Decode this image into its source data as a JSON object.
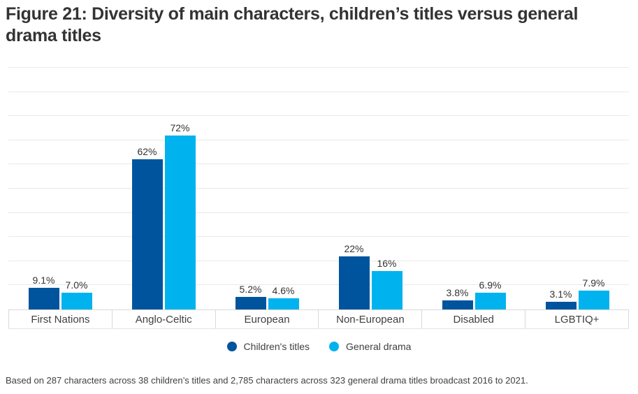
{
  "title": "Figure 21: Diversity of main characters, children’s titles versus general drama titles",
  "footnote": "Based on 287 characters across 38 children’s titles and 2,785 characters across 323 general drama titles broadcast 2016 to 2021.",
  "colors": {
    "children_titles": "#00549e",
    "general_drama": "#00b2ee",
    "gridline": "#e9e9e9",
    "axis_border": "#d9d9d9",
    "title_text": "#333333",
    "body_text": "#404040"
  },
  "chart_data": {
    "type": "bar",
    "title": "Figure 21: Diversity of main characters, children’s titles versus general drama titles",
    "categories": [
      "First Nations",
      "Anglo-Celtic",
      "European",
      "Non-European",
      "Disabled",
      "LGBTIQ+"
    ],
    "series": [
      {
        "name": "Children's titles",
        "color": "#00549e",
        "values": [
          9.1,
          62,
          5.2,
          22,
          3.8,
          3.1
        ],
        "labels": [
          "9.1%",
          "62%",
          "5.2%",
          "22%",
          "3.8%",
          "3.1%"
        ]
      },
      {
        "name": "General drama",
        "color": "#00b2ee",
        "values": [
          7.0,
          72,
          4.6,
          16,
          6.9,
          7.9
        ],
        "labels": [
          "7.0%",
          "72%",
          "4.6%",
          "16%",
          "6.9%",
          "7.9%"
        ]
      }
    ],
    "xlabel": "",
    "ylabel": "",
    "ylim": [
      0,
      100
    ],
    "grid_step": 10,
    "grid": "horizontal",
    "value_labels": true,
    "legend_position": "bottom",
    "footnote": "Based on 287 characters across 38 children’s titles and 2,785 characters across 323 general drama titles broadcast 2016 to 2021."
  }
}
